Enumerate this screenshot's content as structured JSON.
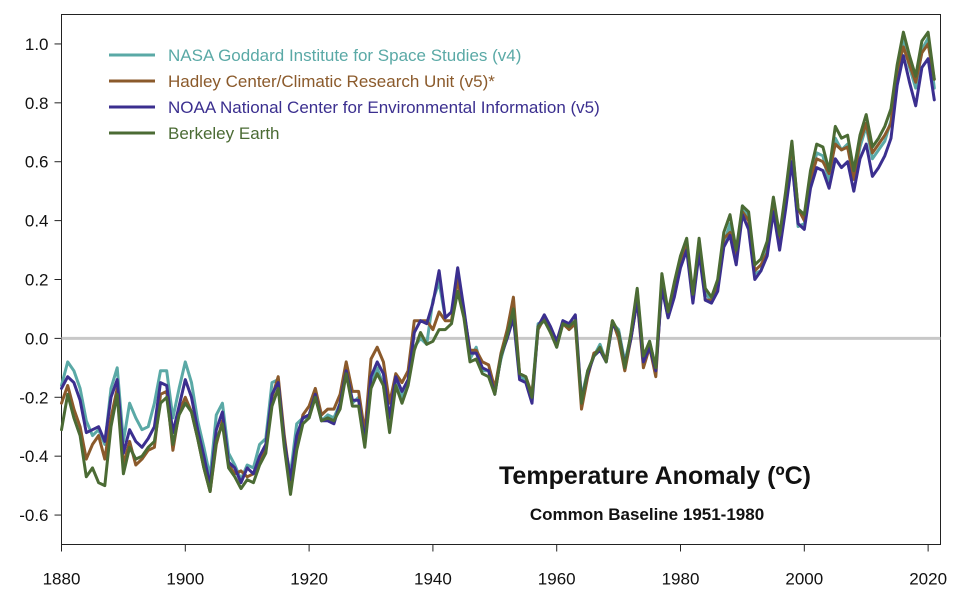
{
  "chart_data": {
    "type": "line",
    "title": "Temperature Anomaly (ºC)",
    "subtitle": "Common Baseline 1951-1980",
    "xlabel": "",
    "ylabel": "",
    "xlim": [
      1880,
      2022
    ],
    "ylim": [
      -0.7,
      1.1
    ],
    "x_ticks": [
      1880,
      1900,
      1920,
      1940,
      1960,
      1980,
      2000,
      2020
    ],
    "y_ticks": [
      -0.6,
      -0.4,
      -0.2,
      0.0,
      0.2,
      0.4,
      0.6,
      0.8,
      1.0
    ],
    "y_tick_labels": [
      "-0.6",
      "-0.4",
      "-0.2",
      "0.0",
      "0.2",
      "0.4",
      "0.6",
      "0.8",
      "1.0"
    ],
    "zero_line": true,
    "grid": false,
    "legend_position": "top-left",
    "series": [
      {
        "name": "NASA Goddard Institute for Space Studies (v4)",
        "color": "#5aa9a6",
        "x": [
          1880,
          1881,
          1882,
          1883,
          1884,
          1885,
          1886,
          1887,
          1888,
          1889,
          1890,
          1891,
          1892,
          1893,
          1894,
          1895,
          1896,
          1897,
          1898,
          1899,
          1900,
          1901,
          1902,
          1903,
          1904,
          1905,
          1906,
          1907,
          1908,
          1909,
          1910,
          1911,
          1912,
          1913,
          1914,
          1915,
          1916,
          1917,
          1918,
          1919,
          1920,
          1921,
          1922,
          1923,
          1924,
          1925,
          1926,
          1927,
          1928,
          1929,
          1930,
          1931,
          1932,
          1933,
          1934,
          1935,
          1936,
          1937,
          1938,
          1939,
          1940,
          1941,
          1942,
          1943,
          1944,
          1945,
          1946,
          1947,
          1948,
          1949,
          1950,
          1951,
          1952,
          1953,
          1954,
          1955,
          1956,
          1957,
          1958,
          1959,
          1960,
          1961,
          1962,
          1963,
          1964,
          1965,
          1966,
          1967,
          1968,
          1969,
          1970,
          1971,
          1972,
          1973,
          1974,
          1975,
          1976,
          1977,
          1978,
          1979,
          1980,
          1981,
          1982,
          1983,
          1984,
          1985,
          1986,
          1987,
          1988,
          1989,
          1990,
          1991,
          1992,
          1993,
          1994,
          1995,
          1996,
          1997,
          1998,
          1999,
          2000,
          2001,
          2002,
          2003,
          2004,
          2005,
          2006,
          2007,
          2008,
          2009,
          2010,
          2011,
          2012,
          2013,
          2014,
          2015,
          2016,
          2017,
          2018,
          2019,
          2020,
          2021
        ],
        "y": [
          -0.16,
          -0.08,
          -0.11,
          -0.17,
          -0.28,
          -0.33,
          -0.31,
          -0.36,
          -0.17,
          -0.1,
          -0.35,
          -0.22,
          -0.27,
          -0.31,
          -0.3,
          -0.22,
          -0.11,
          -0.11,
          -0.27,
          -0.17,
          -0.08,
          -0.15,
          -0.28,
          -0.37,
          -0.47,
          -0.26,
          -0.22,
          -0.39,
          -0.43,
          -0.48,
          -0.43,
          -0.44,
          -0.36,
          -0.34,
          -0.15,
          -0.14,
          -0.36,
          -0.46,
          -0.29,
          -0.27,
          -0.27,
          -0.19,
          -0.28,
          -0.26,
          -0.27,
          -0.22,
          -0.1,
          -0.22,
          -0.2,
          -0.36,
          -0.16,
          -0.1,
          -0.16,
          -0.29,
          -0.13,
          -0.2,
          -0.15,
          -0.03,
          -0.0,
          -0.02,
          0.13,
          0.19,
          0.07,
          0.09,
          0.2,
          0.09,
          -0.07,
          -0.03,
          -0.11,
          -0.11,
          -0.17,
          -0.07,
          0.01,
          0.08,
          -0.13,
          -0.14,
          -0.19,
          0.05,
          0.06,
          0.03,
          -0.03,
          0.06,
          0.03,
          0.05,
          -0.2,
          -0.11,
          -0.06,
          -0.02,
          -0.08,
          0.05,
          0.03,
          -0.08,
          0.01,
          0.16,
          -0.07,
          -0.01,
          -0.1,
          0.18,
          0.07,
          0.16,
          0.26,
          0.32,
          0.14,
          0.31,
          0.16,
          0.12,
          0.18,
          0.32,
          0.39,
          0.27,
          0.45,
          0.41,
          0.22,
          0.23,
          0.31,
          0.45,
          0.33,
          0.46,
          0.61,
          0.38,
          0.39,
          0.54,
          0.63,
          0.62,
          0.53,
          0.68,
          0.64,
          0.66,
          0.54,
          0.65,
          0.72,
          0.61,
          0.64,
          0.67,
          0.74,
          0.9,
          1.01,
          0.92,
          0.85,
          0.98,
          1.02,
          0.85
        ]
      },
      {
        "name": "Hadley Center/Climatic Research Unit (v5)*",
        "color": "#8b5a2b",
        "x": [
          1880,
          1881,
          1882,
          1883,
          1884,
          1885,
          1886,
          1887,
          1888,
          1889,
          1890,
          1891,
          1892,
          1893,
          1894,
          1895,
          1896,
          1897,
          1898,
          1899,
          1900,
          1901,
          1902,
          1903,
          1904,
          1905,
          1906,
          1907,
          1908,
          1909,
          1910,
          1911,
          1912,
          1913,
          1914,
          1915,
          1916,
          1917,
          1918,
          1919,
          1920,
          1921,
          1922,
          1923,
          1924,
          1925,
          1926,
          1927,
          1928,
          1929,
          1930,
          1931,
          1932,
          1933,
          1934,
          1935,
          1936,
          1937,
          1938,
          1939,
          1940,
          1941,
          1942,
          1943,
          1944,
          1945,
          1946,
          1947,
          1948,
          1949,
          1950,
          1951,
          1952,
          1953,
          1954,
          1955,
          1956,
          1957,
          1958,
          1959,
          1960,
          1961,
          1962,
          1963,
          1964,
          1965,
          1966,
          1967,
          1968,
          1969,
          1970,
          1971,
          1972,
          1973,
          1974,
          1975,
          1976,
          1977,
          1978,
          1979,
          1980,
          1981,
          1982,
          1983,
          1984,
          1985,
          1986,
          1987,
          1988,
          1989,
          1990,
          1991,
          1992,
          1993,
          1994,
          1995,
          1996,
          1997,
          1998,
          1999,
          2000,
          2001,
          2002,
          2003,
          2004,
          2005,
          2006,
          2007,
          2008,
          2009,
          2010,
          2011,
          2012,
          2013,
          2014,
          2015,
          2016,
          2017,
          2018,
          2019,
          2020,
          2021
        ],
        "y": [
          -0.22,
          -0.16,
          -0.24,
          -0.3,
          -0.41,
          -0.36,
          -0.33,
          -0.41,
          -0.27,
          -0.17,
          -0.43,
          -0.35,
          -0.43,
          -0.41,
          -0.38,
          -0.37,
          -0.19,
          -0.18,
          -0.38,
          -0.25,
          -0.2,
          -0.25,
          -0.34,
          -0.44,
          -0.52,
          -0.36,
          -0.28,
          -0.43,
          -0.46,
          -0.45,
          -0.47,
          -0.46,
          -0.41,
          -0.38,
          -0.2,
          -0.13,
          -0.33,
          -0.49,
          -0.37,
          -0.26,
          -0.23,
          -0.17,
          -0.26,
          -0.24,
          -0.24,
          -0.19,
          -0.08,
          -0.18,
          -0.18,
          -0.32,
          -0.07,
          -0.03,
          -0.08,
          -0.22,
          -0.12,
          -0.15,
          -0.11,
          0.06,
          0.06,
          0.06,
          0.03,
          0.09,
          0.06,
          0.06,
          0.2,
          0.09,
          -0.04,
          -0.04,
          -0.08,
          -0.09,
          -0.17,
          -0.05,
          0.03,
          0.14,
          -0.12,
          -0.13,
          -0.19,
          0.03,
          0.07,
          0.02,
          -0.02,
          0.05,
          0.03,
          0.05,
          -0.24,
          -0.13,
          -0.05,
          -0.04,
          -0.07,
          0.06,
          -0.0,
          -0.11,
          -0.0,
          0.13,
          -0.1,
          -0.03,
          -0.13,
          0.19,
          0.08,
          0.18,
          0.27,
          0.32,
          0.13,
          0.33,
          0.13,
          0.13,
          0.18,
          0.34,
          0.36,
          0.28,
          0.43,
          0.4,
          0.23,
          0.25,
          0.29,
          0.45,
          0.31,
          0.48,
          0.66,
          0.44,
          0.4,
          0.54,
          0.61,
          0.6,
          0.56,
          0.66,
          0.64,
          0.65,
          0.54,
          0.67,
          0.73,
          0.63,
          0.66,
          0.69,
          0.73,
          0.91,
          0.99,
          0.93,
          0.87,
          0.97,
          1.0,
          0.88
        ]
      },
      {
        "name": "NOAA National Center for Environmental Information (v5)",
        "color": "#3b2f8f",
        "x": [
          1880,
          1881,
          1882,
          1883,
          1884,
          1885,
          1886,
          1887,
          1888,
          1889,
          1890,
          1891,
          1892,
          1893,
          1894,
          1895,
          1896,
          1897,
          1898,
          1899,
          1900,
          1901,
          1902,
          1903,
          1904,
          1905,
          1906,
          1907,
          1908,
          1909,
          1910,
          1911,
          1912,
          1913,
          1914,
          1915,
          1916,
          1917,
          1918,
          1919,
          1920,
          1921,
          1922,
          1923,
          1924,
          1925,
          1926,
          1927,
          1928,
          1929,
          1930,
          1931,
          1932,
          1933,
          1934,
          1935,
          1936,
          1937,
          1938,
          1939,
          1940,
          1941,
          1942,
          1943,
          1944,
          1945,
          1946,
          1947,
          1948,
          1949,
          1950,
          1951,
          1952,
          1953,
          1954,
          1955,
          1956,
          1957,
          1958,
          1959,
          1960,
          1961,
          1962,
          1963,
          1964,
          1965,
          1966,
          1967,
          1968,
          1969,
          1970,
          1971,
          1972,
          1973,
          1974,
          1975,
          1976,
          1977,
          1978,
          1979,
          1980,
          1981,
          1982,
          1983,
          1984,
          1985,
          1986,
          1987,
          1988,
          1989,
          1990,
          1991,
          1992,
          1993,
          1994,
          1995,
          1996,
          1997,
          1998,
          1999,
          2000,
          2001,
          2002,
          2003,
          2004,
          2005,
          2006,
          2007,
          2008,
          2009,
          2010,
          2011,
          2012,
          2013,
          2014,
          2015,
          2016,
          2017,
          2018,
          2019,
          2020,
          2021
        ],
        "y": [
          -0.17,
          -0.13,
          -0.15,
          -0.21,
          -0.32,
          -0.31,
          -0.3,
          -0.35,
          -0.2,
          -0.14,
          -0.39,
          -0.31,
          -0.35,
          -0.37,
          -0.34,
          -0.3,
          -0.15,
          -0.16,
          -0.32,
          -0.23,
          -0.14,
          -0.2,
          -0.31,
          -0.4,
          -0.5,
          -0.31,
          -0.25,
          -0.42,
          -0.44,
          -0.49,
          -0.44,
          -0.46,
          -0.4,
          -0.36,
          -0.19,
          -0.15,
          -0.35,
          -0.48,
          -0.33,
          -0.27,
          -0.26,
          -0.19,
          -0.28,
          -0.28,
          -0.29,
          -0.22,
          -0.11,
          -0.21,
          -0.21,
          -0.35,
          -0.13,
          -0.08,
          -0.12,
          -0.27,
          -0.13,
          -0.18,
          -0.14,
          0.02,
          0.06,
          0.05,
          0.12,
          0.23,
          0.07,
          0.09,
          0.24,
          0.1,
          -0.05,
          -0.05,
          -0.1,
          -0.11,
          -0.19,
          -0.06,
          0.0,
          0.07,
          -0.14,
          -0.15,
          -0.22,
          0.04,
          0.08,
          0.04,
          -0.01,
          0.06,
          0.05,
          0.08,
          -0.21,
          -0.12,
          -0.06,
          -0.04,
          -0.08,
          0.05,
          0.02,
          -0.09,
          0.0,
          0.13,
          -0.08,
          -0.03,
          -0.11,
          0.17,
          0.07,
          0.14,
          0.24,
          0.3,
          0.12,
          0.29,
          0.13,
          0.12,
          0.16,
          0.31,
          0.35,
          0.25,
          0.42,
          0.37,
          0.2,
          0.23,
          0.28,
          0.43,
          0.3,
          0.44,
          0.6,
          0.39,
          0.37,
          0.51,
          0.58,
          0.57,
          0.51,
          0.61,
          0.58,
          0.6,
          0.5,
          0.61,
          0.66,
          0.55,
          0.58,
          0.62,
          0.68,
          0.86,
          0.96,
          0.87,
          0.79,
          0.92,
          0.95,
          0.81
        ]
      },
      {
        "name": "Berkeley Earth",
        "color": "#4b6b34",
        "x": [
          1880,
          1881,
          1882,
          1883,
          1884,
          1885,
          1886,
          1887,
          1888,
          1889,
          1890,
          1891,
          1892,
          1893,
          1894,
          1895,
          1896,
          1897,
          1898,
          1899,
          1900,
          1901,
          1902,
          1903,
          1904,
          1905,
          1906,
          1907,
          1908,
          1909,
          1910,
          1911,
          1912,
          1913,
          1914,
          1915,
          1916,
          1917,
          1918,
          1919,
          1920,
          1921,
          1922,
          1923,
          1924,
          1925,
          1926,
          1927,
          1928,
          1929,
          1930,
          1931,
          1932,
          1933,
          1934,
          1935,
          1936,
          1937,
          1938,
          1939,
          1940,
          1941,
          1942,
          1943,
          1944,
          1945,
          1946,
          1947,
          1948,
          1949,
          1950,
          1951,
          1952,
          1953,
          1954,
          1955,
          1956,
          1957,
          1958,
          1959,
          1960,
          1961,
          1962,
          1963,
          1964,
          1965,
          1966,
          1967,
          1968,
          1969,
          1970,
          1971,
          1972,
          1973,
          1974,
          1975,
          1976,
          1977,
          1978,
          1979,
          1980,
          1981,
          1982,
          1983,
          1984,
          1985,
          1986,
          1987,
          1988,
          1989,
          1990,
          1991,
          1992,
          1993,
          1994,
          1995,
          1996,
          1997,
          1998,
          1999,
          2000,
          2001,
          2002,
          2003,
          2004,
          2005,
          2006,
          2007,
          2008,
          2009,
          2010,
          2011,
          2012,
          2013,
          2014,
          2015,
          2016,
          2017,
          2018,
          2019,
          2020,
          2021
        ],
        "y": [
          -0.31,
          -0.19,
          -0.27,
          -0.33,
          -0.47,
          -0.44,
          -0.49,
          -0.5,
          -0.3,
          -0.19,
          -0.46,
          -0.37,
          -0.41,
          -0.4,
          -0.37,
          -0.35,
          -0.22,
          -0.2,
          -0.36,
          -0.26,
          -0.22,
          -0.25,
          -0.34,
          -0.44,
          -0.52,
          -0.35,
          -0.29,
          -0.44,
          -0.47,
          -0.51,
          -0.48,
          -0.49,
          -0.43,
          -0.39,
          -0.23,
          -0.17,
          -0.37,
          -0.53,
          -0.38,
          -0.29,
          -0.27,
          -0.2,
          -0.28,
          -0.27,
          -0.28,
          -0.24,
          -0.12,
          -0.23,
          -0.23,
          -0.37,
          -0.17,
          -0.12,
          -0.16,
          -0.32,
          -0.16,
          -0.22,
          -0.16,
          -0.04,
          0.02,
          -0.02,
          -0.01,
          0.03,
          0.03,
          0.05,
          0.16,
          0.07,
          -0.08,
          -0.07,
          -0.12,
          -0.13,
          -0.19,
          -0.06,
          0.01,
          0.1,
          -0.12,
          -0.13,
          -0.2,
          0.04,
          0.06,
          0.02,
          -0.03,
          0.05,
          0.04,
          0.06,
          -0.22,
          -0.11,
          -0.06,
          -0.03,
          -0.08,
          0.06,
          0.02,
          -0.1,
          0.02,
          0.17,
          -0.06,
          -0.01,
          -0.1,
          0.22,
          0.09,
          0.19,
          0.28,
          0.34,
          0.15,
          0.34,
          0.17,
          0.14,
          0.2,
          0.36,
          0.42,
          0.3,
          0.45,
          0.43,
          0.25,
          0.27,
          0.33,
          0.48,
          0.35,
          0.5,
          0.67,
          0.44,
          0.42,
          0.57,
          0.66,
          0.65,
          0.57,
          0.72,
          0.68,
          0.69,
          0.57,
          0.69,
          0.76,
          0.65,
          0.68,
          0.72,
          0.78,
          0.93,
          1.04,
          0.96,
          0.89,
          1.01,
          1.04,
          0.88
        ]
      }
    ]
  }
}
